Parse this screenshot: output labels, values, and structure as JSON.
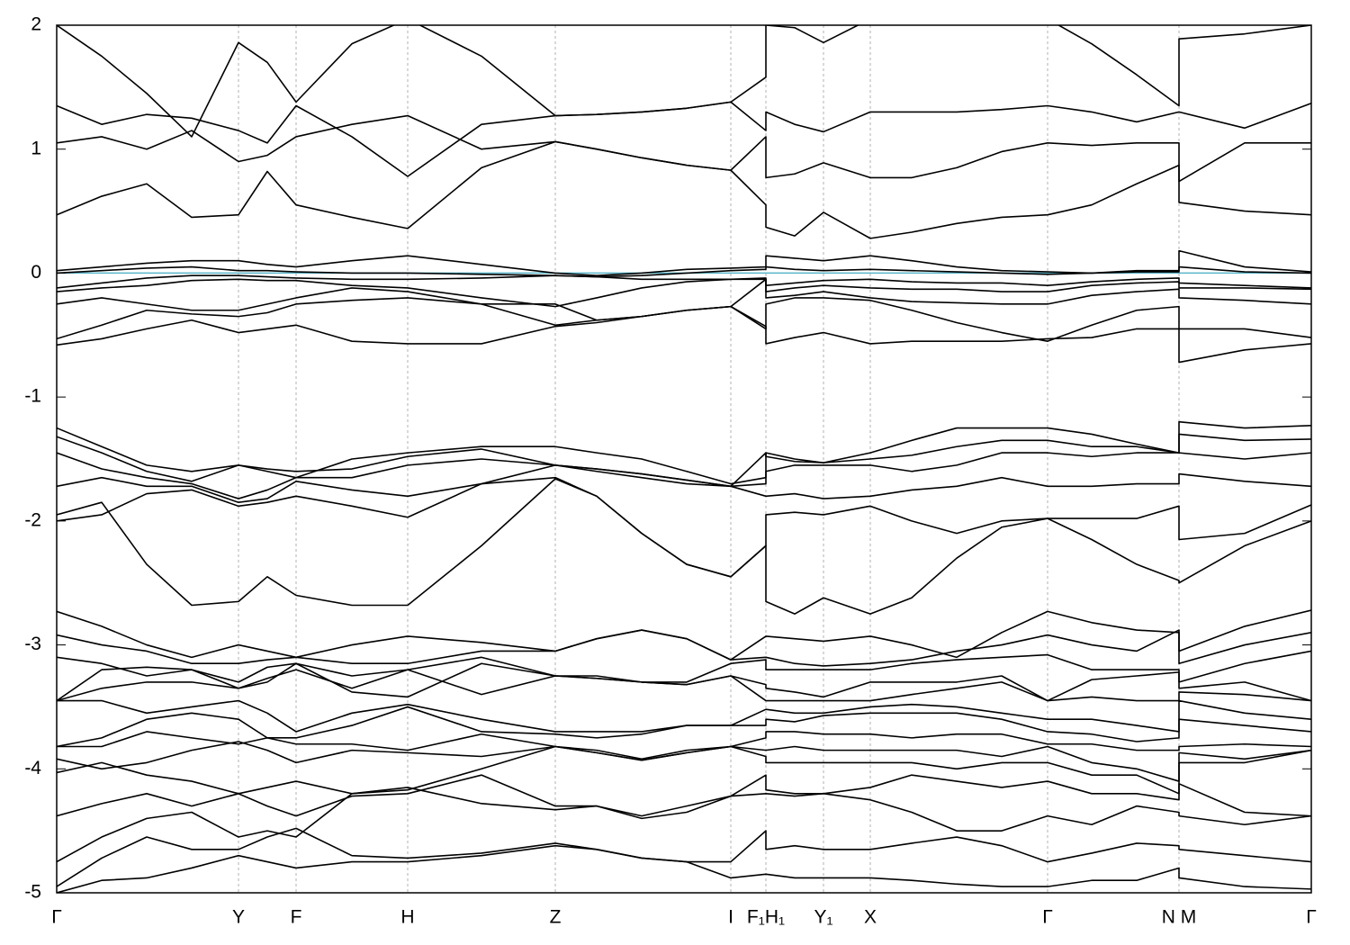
{
  "chart_data": {
    "type": "line",
    "x": [
      0,
      0.5,
      1.0,
      1.5,
      2.02,
      2.34,
      2.66,
      3.28,
      3.9,
      4.72,
      5.54,
      6.0,
      6.5,
      7.0,
      7.49,
      7.88,
      7.88,
      8.2,
      8.52,
      9.04,
      9.5,
      10.0,
      10.5,
      11.01,
      11.5,
      12.0,
      12.47,
      12.47,
      13.2,
      13.94
    ],
    "xlim": [
      0,
      13.94
    ],
    "xticks": [
      {
        "value": 0,
        "label": "Γ"
      },
      {
        "value": 2.02,
        "label": "Y"
      },
      {
        "value": 2.66,
        "label": "F"
      },
      {
        "value": 3.9,
        "label": "H"
      },
      {
        "value": 5.54,
        "label": "Z"
      },
      {
        "value": 7.49,
        "label": "I"
      },
      {
        "value": 7.88,
        "label": "F₁H₁"
      },
      {
        "value": 8.52,
        "label": "Y₁"
      },
      {
        "value": 9.04,
        "label": "X"
      },
      {
        "value": 11.01,
        "label": "Γ"
      },
      {
        "value": 12.47,
        "label": "N M"
      },
      {
        "value": 13.94,
        "label": "Γ"
      }
    ],
    "ylim": [
      -5,
      2
    ],
    "yticks": [
      -5,
      -4,
      -3,
      -2,
      -1,
      0,
      1,
      2
    ],
    "grid": "x",
    "line_color": "#000000",
    "fermi_level": {
      "value": 0,
      "color": "#5ab4c8"
    },
    "series": [
      {
        "values": [
          0.47,
          0.62,
          0.72,
          0.45,
          0.47,
          0.82,
          0.55,
          0.45,
          0.36,
          0.85,
          1.06,
          1.0,
          0.93,
          0.87,
          0.83,
          0.55,
          0.37,
          0.3,
          0.49,
          0.28,
          0.33,
          0.4,
          0.45,
          0.47,
          0.55,
          0.72,
          0.87,
          0.57,
          0.5,
          0.47
        ]
      },
      {
        "values": [
          1.05,
          1.1,
          1.0,
          1.15,
          0.9,
          0.95,
          1.1,
          1.2,
          1.27,
          1.0,
          1.06,
          1.0,
          0.93,
          0.87,
          0.83,
          1.1,
          0.77,
          0.8,
          0.89,
          0.77,
          0.77,
          0.85,
          0.98,
          1.05,
          1.03,
          1.05,
          1.05,
          0.74,
          1.05,
          1.05
        ]
      },
      {
        "values": [
          1.35,
          1.2,
          1.28,
          1.25,
          1.15,
          1.05,
          1.35,
          1.1,
          0.78,
          1.2,
          1.27,
          1.28,
          1.3,
          1.33,
          1.38,
          1.15,
          1.3,
          1.2,
          1.14,
          1.3,
          1.3,
          1.3,
          1.32,
          1.35,
          1.3,
          1.22,
          1.3,
          1.3,
          1.17,
          1.37
        ]
      },
      {
        "values": [
          2.0,
          1.75,
          1.45,
          1.1,
          1.86,
          1.7,
          1.38,
          1.85,
          2.05,
          1.75,
          1.27,
          1.28,
          1.3,
          1.33,
          1.38,
          1.58,
          2.0,
          1.98,
          1.86,
          2.05,
          2.1,
          2.1,
          2.1,
          2.05,
          1.85,
          1.6,
          1.35,
          1.89,
          1.93,
          2.0
        ]
      },
      {
        "values": [
          0.02,
          0.05,
          0.08,
          0.1,
          0.1,
          0.07,
          0.05,
          0.1,
          0.14,
          0.07,
          0.0,
          -0.02,
          0.0,
          0.03,
          0.04,
          0.05,
          0.14,
          0.12,
          0.1,
          0.14,
          0.1,
          0.05,
          0.02,
          0.01,
          0.0,
          0.02,
          0.02,
          0.18,
          0.05,
          0.01
        ]
      },
      {
        "values": [
          0.0,
          0.02,
          0.04,
          0.05,
          0.02,
          0.02,
          0.01,
          0.0,
          0.0,
          -0.01,
          -0.02,
          -0.03,
          -0.02,
          0.0,
          0.02,
          0.03,
          0.05,
          0.03,
          0.02,
          0.03,
          0.02,
          0.01,
          0.0,
          -0.01,
          0.0,
          0.01,
          0.01,
          0.05,
          0.01,
          0.0
        ]
      },
      {
        "values": [
          -0.12,
          -0.08,
          -0.04,
          -0.02,
          -0.02,
          -0.03,
          -0.04,
          -0.05,
          -0.05,
          -0.04,
          -0.02,
          -0.03,
          -0.05,
          -0.05,
          -0.05,
          -0.04,
          -0.1,
          -0.08,
          -0.06,
          -0.05,
          -0.07,
          -0.08,
          -0.08,
          -0.1,
          -0.07,
          -0.05,
          -0.04,
          -0.08,
          -0.1,
          -0.12
        ]
      },
      {
        "values": [
          -0.15,
          -0.12,
          -0.1,
          -0.06,
          -0.05,
          -0.06,
          -0.06,
          -0.1,
          -0.12,
          -0.2,
          -0.27,
          -0.2,
          -0.12,
          -0.07,
          -0.05,
          -0.05,
          -0.15,
          -0.12,
          -0.1,
          -0.12,
          -0.13,
          -0.13,
          -0.15,
          -0.15,
          -0.1,
          -0.08,
          -0.07,
          -0.12,
          -0.12,
          -0.13
        ]
      },
      {
        "values": [
          -0.25,
          -0.2,
          -0.25,
          -0.3,
          -0.3,
          -0.25,
          -0.2,
          -0.12,
          -0.15,
          -0.25,
          -0.25,
          -0.38,
          -0.35,
          -0.3,
          -0.27,
          -0.05,
          -0.2,
          -0.18,
          -0.15,
          -0.2,
          -0.23,
          -0.24,
          -0.25,
          -0.25,
          -0.18,
          -0.15,
          -0.13,
          -0.2,
          -0.22,
          -0.25
        ]
      },
      {
        "values": [
          -0.53,
          -0.42,
          -0.3,
          -0.33,
          -0.35,
          -0.32,
          -0.25,
          -0.22,
          -0.2,
          -0.25,
          -0.42,
          -0.38,
          -0.35,
          -0.3,
          -0.27,
          -0.45,
          -0.25,
          -0.2,
          -0.2,
          -0.22,
          -0.3,
          -0.4,
          -0.48,
          -0.55,
          -0.42,
          -0.3,
          -0.27,
          -0.45,
          -0.45,
          -0.52
        ]
      },
      {
        "values": [
          -0.58,
          -0.53,
          -0.45,
          -0.38,
          -0.48,
          -0.45,
          -0.42,
          -0.55,
          -0.57,
          -0.57,
          -0.43,
          -0.4,
          -0.35,
          -0.3,
          -0.27,
          -0.43,
          -0.57,
          -0.52,
          -0.48,
          -0.57,
          -0.55,
          -0.55,
          -0.55,
          -0.53,
          -0.52,
          -0.45,
          -0.45,
          -0.72,
          -0.62,
          -0.57
        ]
      },
      {
        "values": [
          -1.25,
          -1.4,
          -1.55,
          -1.6,
          -1.55,
          -1.6,
          -1.65,
          -1.5,
          -1.45,
          -1.4,
          -1.4,
          -1.45,
          -1.5,
          -1.6,
          -1.7,
          -1.65,
          -1.45,
          -1.5,
          -1.53,
          -1.45,
          -1.35,
          -1.25,
          -1.25,
          -1.25,
          -1.3,
          -1.38,
          -1.45,
          -1.2,
          -1.25,
          -1.23
        ]
      },
      {
        "values": [
          -1.32,
          -1.45,
          -1.6,
          -1.68,
          -1.55,
          -1.58,
          -1.6,
          -1.58,
          -1.48,
          -1.42,
          -1.55,
          -1.58,
          -1.62,
          -1.67,
          -1.72,
          -1.45,
          -1.48,
          -1.52,
          -1.53,
          -1.5,
          -1.47,
          -1.4,
          -1.35,
          -1.35,
          -1.4,
          -1.4,
          -1.45,
          -1.3,
          -1.35,
          -1.34
        ]
      },
      {
        "values": [
          -1.45,
          -1.58,
          -1.65,
          -1.7,
          -1.82,
          -1.75,
          -1.65,
          -1.65,
          -1.55,
          -1.5,
          -1.55,
          -1.58,
          -1.62,
          -1.67,
          -1.72,
          -1.7,
          -1.6,
          -1.55,
          -1.55,
          -1.55,
          -1.6,
          -1.55,
          -1.45,
          -1.45,
          -1.48,
          -1.45,
          -1.45,
          -1.45,
          -1.5,
          -1.45
        ]
      },
      {
        "values": [
          -1.72,
          -1.65,
          -1.72,
          -1.72,
          -1.85,
          -1.82,
          -1.68,
          -1.75,
          -1.8,
          -1.7,
          -1.55,
          -1.6,
          -1.65,
          -1.7,
          -1.72,
          -1.8,
          -1.8,
          -1.78,
          -1.82,
          -1.8,
          -1.75,
          -1.72,
          -1.65,
          -1.72,
          -1.72,
          -1.7,
          -1.7,
          -1.62,
          -1.68,
          -1.72
        ]
      },
      {
        "values": [
          -2.0,
          -1.95,
          -1.78,
          -1.75,
          -1.88,
          -1.85,
          -1.8,
          -1.88,
          -1.97,
          -1.7,
          -1.65,
          -1.8,
          -2.1,
          -2.35,
          -2.45,
          -2.2,
          -1.95,
          -1.93,
          -1.95,
          -1.88,
          -2.0,
          -2.1,
          -2.0,
          -1.98,
          -1.98,
          -1.98,
          -1.88,
          -2.15,
          -2.1,
          -1.87
        ]
      },
      {
        "values": [
          -1.95,
          -1.85,
          -2.35,
          -2.68,
          -2.65,
          -2.45,
          -2.6,
          -2.68,
          -2.68,
          -2.2,
          -1.66,
          -1.8,
          -2.1,
          -2.35,
          -2.45,
          -2.2,
          -2.65,
          -2.75,
          -2.62,
          -2.75,
          -2.62,
          -2.3,
          -2.05,
          -1.98,
          -2.15,
          -2.35,
          -2.48,
          -2.5,
          -2.2,
          -2.0
        ]
      },
      {
        "values": [
          -2.73,
          -2.85,
          -3.0,
          -3.1,
          -3.0,
          -3.05,
          -3.1,
          -3.0,
          -2.93,
          -2.98,
          -3.05,
          -2.95,
          -2.88,
          -2.95,
          -3.12,
          -2.93,
          -2.93,
          -2.95,
          -2.97,
          -2.93,
          -3.0,
          -3.1,
          -2.9,
          -2.73,
          -2.82,
          -2.88,
          -2.9,
          -3.05,
          -2.85,
          -2.72
        ]
      },
      {
        "values": [
          -2.92,
          -3.0,
          -3.05,
          -3.15,
          -3.15,
          -3.12,
          -3.1,
          -3.15,
          -3.15,
          -3.05,
          -3.05,
          -2.95,
          -2.88,
          -2.95,
          -3.12,
          -3.1,
          -3.1,
          -3.15,
          -3.17,
          -3.15,
          -3.12,
          -3.05,
          -3.0,
          -2.92,
          -3.0,
          -3.05,
          -2.88,
          -3.15,
          -3.0,
          -2.9
        ]
      },
      {
        "values": [
          -3.1,
          -3.15,
          -3.25,
          -3.2,
          -3.3,
          -3.18,
          -3.15,
          -3.25,
          -3.2,
          -3.1,
          -3.25,
          -3.25,
          -3.3,
          -3.3,
          -3.15,
          -3.12,
          -3.2,
          -3.2,
          -3.2,
          -3.2,
          -3.15,
          -3.12,
          -3.1,
          -3.08,
          -3.2,
          -3.2,
          -3.2,
          -3.3,
          -3.15,
          -3.05
        ]
      },
      {
        "values": [
          -3.45,
          -3.2,
          -3.18,
          -3.2,
          -3.35,
          -3.3,
          -3.15,
          -3.38,
          -3.42,
          -3.15,
          -3.25,
          -3.27,
          -3.3,
          -3.32,
          -3.25,
          -3.32,
          -3.35,
          -3.38,
          -3.42,
          -3.3,
          -3.3,
          -3.3,
          -3.25,
          -3.45,
          -3.28,
          -3.25,
          -3.22,
          -3.35,
          -3.3,
          -3.45
        ]
      },
      {
        "values": [
          -3.45,
          -3.35,
          -3.3,
          -3.3,
          -3.35,
          -3.27,
          -3.2,
          -3.35,
          -3.2,
          -3.4,
          -3.25,
          -3.27,
          -3.3,
          -3.32,
          -3.25,
          -3.45,
          -3.45,
          -3.45,
          -3.45,
          -3.45,
          -3.4,
          -3.35,
          -3.3,
          -3.45,
          -3.42,
          -3.45,
          -3.45,
          -3.38,
          -3.4,
          -3.45
        ]
      },
      {
        "values": [
          -3.45,
          -3.45,
          -3.55,
          -3.5,
          -3.45,
          -3.55,
          -3.7,
          -3.55,
          -3.48,
          -3.6,
          -3.7,
          -3.7,
          -3.7,
          -3.65,
          -3.65,
          -3.52,
          -3.52,
          -3.55,
          -3.55,
          -3.5,
          -3.48,
          -3.5,
          -3.55,
          -3.6,
          -3.6,
          -3.65,
          -3.7,
          -3.45,
          -3.55,
          -3.6
        ]
      },
      {
        "values": [
          -3.82,
          -3.75,
          -3.6,
          -3.55,
          -3.6,
          -3.75,
          -3.75,
          -3.65,
          -3.5,
          -3.7,
          -3.72,
          -3.75,
          -3.72,
          -3.65,
          -3.65,
          -3.65,
          -3.6,
          -3.62,
          -3.57,
          -3.55,
          -3.55,
          -3.55,
          -3.6,
          -3.7,
          -3.72,
          -3.78,
          -3.75,
          -3.6,
          -3.65,
          -3.7
        ]
      },
      {
        "values": [
          -3.82,
          -3.82,
          -3.7,
          -3.75,
          -3.8,
          -3.75,
          -3.8,
          -3.8,
          -3.85,
          -3.72,
          -3.82,
          -3.85,
          -3.92,
          -3.85,
          -3.82,
          -3.75,
          -3.7,
          -3.7,
          -3.72,
          -3.72,
          -3.75,
          -3.72,
          -3.72,
          -3.8,
          -3.8,
          -3.85,
          -3.85,
          -3.82,
          -3.8,
          -3.82
        ]
      },
      {
        "values": [
          -3.92,
          -4.0,
          -3.95,
          -3.85,
          -3.78,
          -3.85,
          -3.95,
          -3.85,
          -3.87,
          -3.9,
          -3.82,
          -3.87,
          -3.93,
          -3.87,
          -3.82,
          -3.85,
          -3.85,
          -3.82,
          -3.85,
          -3.85,
          -3.85,
          -3.85,
          -3.9,
          -3.82,
          -3.95,
          -4.0,
          -4.1,
          -3.87,
          -3.92,
          -3.85
        ]
      },
      {
        "values": [
          -4.03,
          -3.95,
          -4.05,
          -4.1,
          -4.2,
          -4.15,
          -4.1,
          -4.2,
          -4.17,
          -4.0,
          -3.82,
          -3.87,
          -3.93,
          -3.87,
          -3.82,
          -3.9,
          -3.95,
          -3.95,
          -3.95,
          -3.95,
          -3.95,
          -4.0,
          -3.95,
          -3.95,
          -4.05,
          -4.05,
          -4.2,
          -3.95,
          -3.95,
          -3.85
        ]
      },
      {
        "values": [
          -4.38,
          -4.28,
          -4.2,
          -4.3,
          -4.2,
          -4.3,
          -4.38,
          -4.22,
          -4.2,
          -4.05,
          -4.3,
          -4.3,
          -4.38,
          -4.3,
          -4.22,
          -4.05,
          -4.17,
          -4.2,
          -4.2,
          -4.15,
          -4.05,
          -4.1,
          -4.15,
          -4.1,
          -4.2,
          -4.2,
          -4.25,
          -4.12,
          -4.35,
          -4.38
        ]
      },
      {
        "values": [
          -4.75,
          -4.55,
          -4.4,
          -4.35,
          -4.55,
          -4.5,
          -4.55,
          -4.2,
          -4.15,
          -4.28,
          -4.33,
          -4.3,
          -4.4,
          -4.35,
          -4.22,
          -4.2,
          -4.2,
          -4.22,
          -4.2,
          -4.25,
          -4.35,
          -4.5,
          -4.5,
          -4.38,
          -4.45,
          -4.3,
          -4.35,
          -4.38,
          -4.45,
          -4.38
        ]
      },
      {
        "values": [
          -4.95,
          -4.72,
          -4.55,
          -4.65,
          -4.65,
          -4.55,
          -4.48,
          -4.7,
          -4.72,
          -4.68,
          -4.6,
          -4.65,
          -4.72,
          -4.75,
          -4.75,
          -4.5,
          -4.65,
          -4.62,
          -4.65,
          -4.65,
          -4.6,
          -4.55,
          -4.62,
          -4.75,
          -4.68,
          -4.6,
          -4.62,
          -4.65,
          -4.7,
          -4.75
        ]
      },
      {
        "values": [
          -5.0,
          -4.9,
          -4.88,
          -4.8,
          -4.7,
          -4.75,
          -4.8,
          -4.75,
          -4.75,
          -4.7,
          -4.62,
          -4.65,
          -4.72,
          -4.75,
          -4.88,
          -4.85,
          -4.85,
          -4.88,
          -4.88,
          -4.88,
          -4.9,
          -4.93,
          -4.95,
          -4.95,
          -4.9,
          -4.9,
          -4.8,
          -4.88,
          -4.95,
          -4.97
        ]
      }
    ]
  }
}
